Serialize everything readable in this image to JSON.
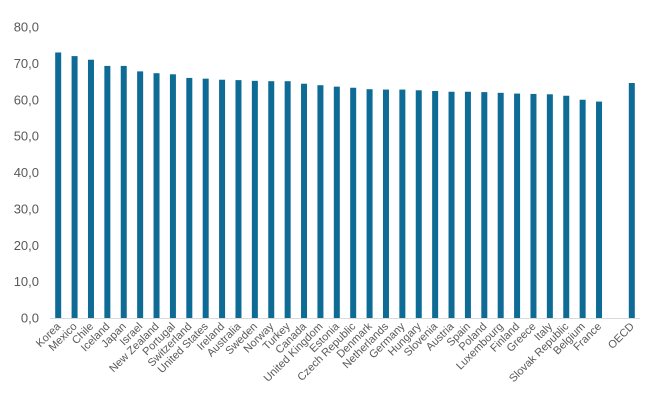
{
  "chart_data": {
    "type": "bar",
    "categories": [
      "Korea",
      "Mexico",
      "Chile",
      "Iceland",
      "Japan",
      "Israel",
      "New Zealand",
      "Portugal",
      "Switzerland",
      "United States",
      "Ireland",
      "Australia",
      "Sweden",
      "Norway",
      "Turkey",
      "Canada",
      "United Kingdom",
      "Estonia",
      "Czech Republic",
      "Denmark",
      "Netherlands",
      "Germany",
      "Hungary",
      "Slovenia",
      "Austria",
      "Spain",
      "Poland",
      "Luxembourg",
      "Finland",
      "Greece",
      "Italy",
      "Slovak Republic",
      "Belgium",
      "France",
      "",
      "OECD"
    ],
    "values": [
      73.0,
      72.0,
      71.0,
      69.3,
      69.3,
      67.8,
      67.3,
      67.0,
      66.0,
      65.8,
      65.5,
      65.4,
      65.2,
      65.1,
      65.1,
      64.4,
      64.0,
      63.6,
      63.3,
      62.9,
      62.8,
      62.8,
      62.6,
      62.4,
      62.2,
      62.2,
      62.1,
      61.9,
      61.7,
      61.6,
      61.5,
      61.1,
      60.0,
      59.5,
      null,
      64.6
    ],
    "y_ticks": [
      "0,0",
      "10,0",
      "20,0",
      "30,0",
      "40,0",
      "50,0",
      "60,0",
      "70,0",
      "80,0"
    ],
    "ylim": [
      0,
      80
    ],
    "bar_color": "#0e6b96",
    "grid": false,
    "title": "",
    "xlabel": "",
    "ylabel": ""
  }
}
